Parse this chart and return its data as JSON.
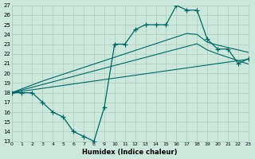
{
  "xlabel": "Humidex (Indice chaleur)",
  "ylabel": "",
  "bg_color": "#cce8dd",
  "grid_color": "#aaccbb",
  "line_color": "#006666",
  "xlim": [
    0,
    23
  ],
  "ylim": [
    13,
    27
  ],
  "xticks": [
    0,
    1,
    2,
    3,
    4,
    5,
    6,
    7,
    8,
    9,
    10,
    11,
    12,
    13,
    14,
    15,
    16,
    17,
    18,
    19,
    20,
    21,
    22,
    23
  ],
  "yticks": [
    13,
    14,
    15,
    16,
    17,
    18,
    19,
    20,
    21,
    22,
    23,
    24,
    25,
    26,
    27
  ],
  "main_line": [
    18,
    18,
    18,
    17,
    16,
    15.5,
    14,
    13.5,
    13,
    16.5,
    23,
    23,
    24.5,
    25,
    25,
    25,
    27,
    26.5,
    26.5,
    23.5,
    22.5,
    22.5,
    21,
    21.5
  ],
  "upper_reg": [
    18,
    18.4,
    18.8,
    19.2,
    19.55,
    19.9,
    20.25,
    20.6,
    20.95,
    21.3,
    21.65,
    22.0,
    22.35,
    22.7,
    23.05,
    23.4,
    23.75,
    24.1,
    24.0,
    23.2,
    22.9,
    22.65,
    22.4,
    22.15
  ],
  "mid_reg": [
    18,
    18.28,
    18.56,
    18.84,
    19.12,
    19.4,
    19.68,
    19.96,
    20.24,
    20.52,
    20.8,
    21.08,
    21.36,
    21.64,
    21.92,
    22.2,
    22.48,
    22.76,
    23.04,
    22.4,
    22.0,
    21.65,
    21.3,
    20.95
  ],
  "lower_reg": [
    18,
    18.15,
    18.3,
    18.45,
    18.6,
    18.75,
    18.9,
    19.05,
    19.2,
    19.35,
    19.5,
    19.65,
    19.8,
    19.95,
    20.1,
    20.25,
    20.4,
    20.55,
    20.7,
    20.85,
    21.0,
    21.15,
    21.3,
    21.45
  ]
}
